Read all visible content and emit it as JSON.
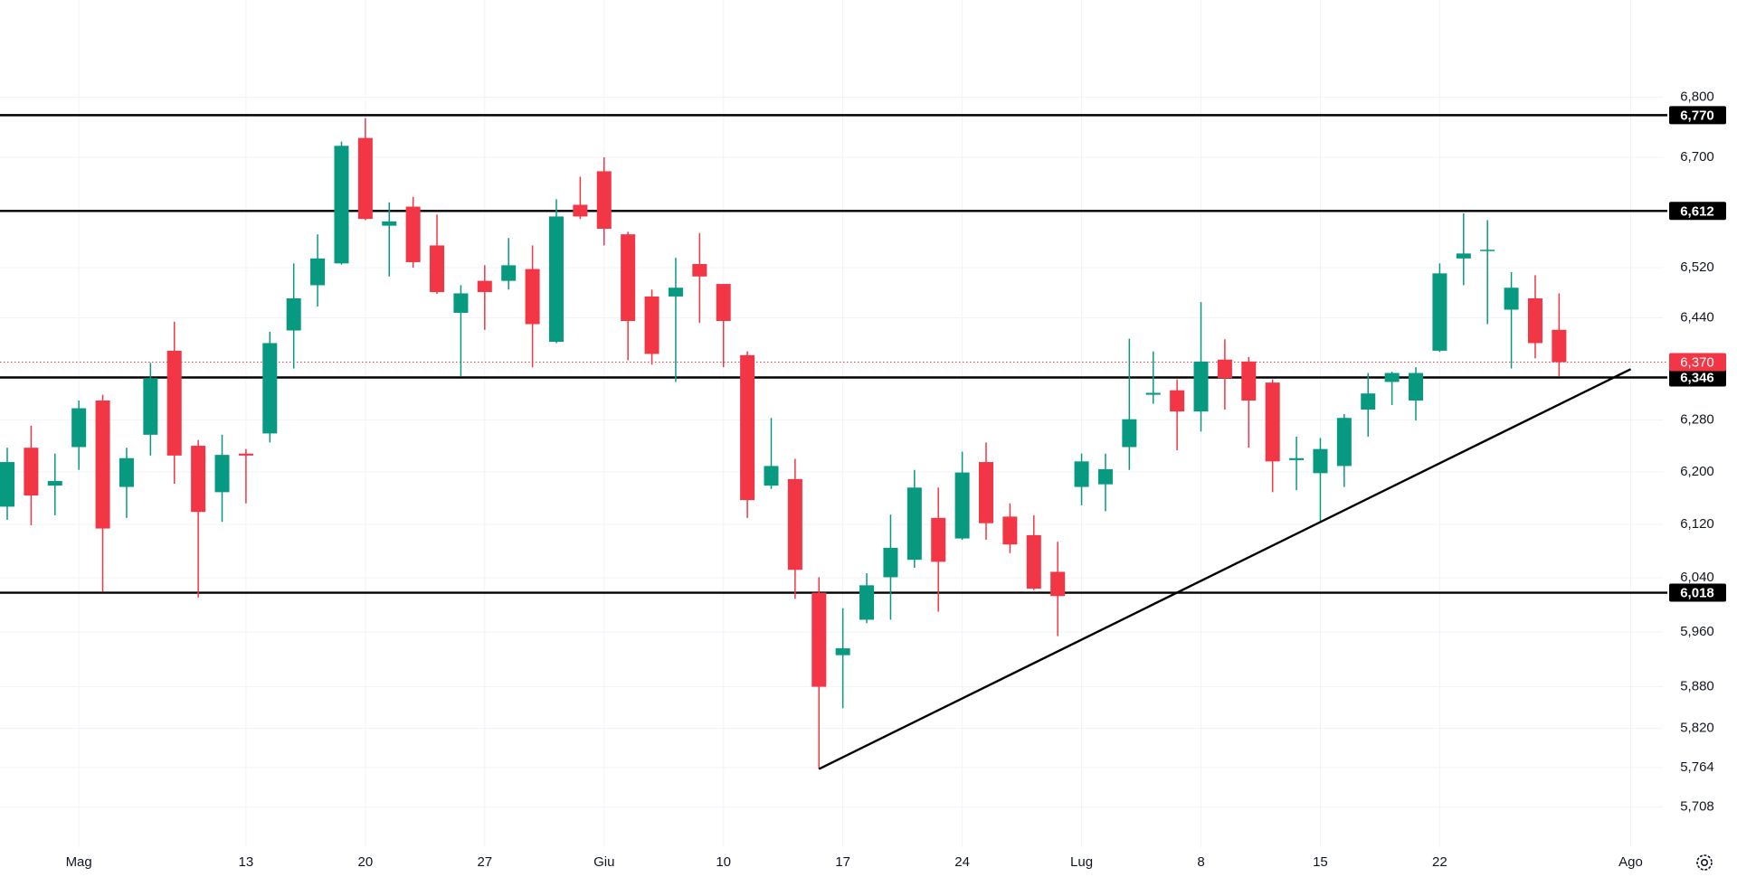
{
  "chart_data": {
    "type": "candlestick",
    "log_scale": true,
    "grid": true,
    "up_color": "#089981",
    "down_color": "#f23645",
    "categories": [
      null,
      null,
      null,
      "Mag",
      null,
      null,
      null,
      null,
      null,
      null,
      "13",
      null,
      null,
      null,
      null,
      "20",
      null,
      null,
      null,
      null,
      "27",
      null,
      null,
      null,
      null,
      "Giu",
      null,
      null,
      null,
      null,
      "10",
      null,
      null,
      null,
      null,
      "17",
      null,
      null,
      null,
      null,
      "24",
      null,
      null,
      null,
      null,
      "Lug",
      null,
      null,
      null,
      null,
      "8",
      null,
      null,
      null,
      null,
      "15",
      null,
      null,
      null,
      null,
      "22",
      null,
      null,
      null,
      null,
      null,
      null,
      null,
      "Ago"
    ],
    "open": [
      6147,
      6237,
      6179,
      6238,
      6310,
      6177,
      6257,
      6388,
      6240,
      6169,
      6228,
      6259,
      6420,
      6492,
      6527,
      6732,
      6588,
      6619,
      6556,
      6448,
      6499,
      6499,
      6518,
      6402,
      6622,
      6677,
      6574,
      6474,
      6474,
      6526,
      6494,
      6381,
      6179,
      6189,
      6018,
      5926,
      5978,
      6041,
      6067,
      6130,
      6099,
      6215,
      6132,
      6104,
      6049,
      6177,
      6181,
      6238,
      6319,
      6326,
      6293,
      6374,
      6371,
      6338,
      6218,
      6198,
      6209,
      6296,
      6339,
      6310,
      6388,
      6535,
      6547,
      6453,
      6471,
      6421,
      null,
      null,
      null
    ],
    "high": [
      6237,
      6271,
      6228,
      6310,
      6319,
      6237,
      6369,
      6434,
      6249,
      6257,
      6235,
      6418,
      6527,
      6574,
      6726,
      6765,
      6626,
      6635,
      6606,
      6492,
      6524,
      6568,
      6556,
      6631,
      6668,
      6700,
      6578,
      6485,
      6536,
      6576,
      6494,
      6387,
      6283,
      6220,
      6041,
      5995,
      6047,
      6135,
      6203,
      6176,
      6231,
      6245,
      6152,
      6134,
      6094,
      6228,
      6228,
      6407,
      6387,
      6343,
      6465,
      6406,
      6378,
      6343,
      6254,
      6252,
      6289,
      6353,
      6355,
      6362,
      6527,
      6608,
      6597,
      6513,
      6508,
      6479,
      null,
      null,
      null
    ],
    "low": [
      6127,
      6119,
      6134,
      6203,
      6019,
      6130,
      6225,
      6182,
      6011,
      6124,
      6152,
      6245,
      6360,
      6458,
      6525,
      6597,
      6506,
      6520,
      6478,
      6348,
      6421,
      6485,
      6362,
      6400,
      6599,
      6556,
      6373,
      6366,
      6339,
      6432,
      6362,
      6130,
      6174,
      6009,
      5762,
      5849,
      5973,
      5978,
      6055,
      5990,
      6097,
      6097,
      6077,
      6022,
      5954,
      6149,
      6140,
      6203,
      6305,
      6233,
      6262,
      6296,
      6237,
      6169,
      6172,
      6125,
      6177,
      6254,
      6303,
      6279,
      6386,
      6492,
      6430,
      6360,
      6376,
      6348,
      null,
      null,
      null
    ],
    "close": [
      6215,
      6164,
      6186,
      6298,
      6114,
      6221,
      6345,
      6225,
      6139,
      6226,
      6225,
      6400,
      6471,
      6535,
      6719,
      6599,
      6595,
      6529,
      6481,
      6479,
      6481,
      6524,
      6430,
      6603,
      6603,
      6583,
      6435,
      6383,
      6488,
      6506,
      6435,
      6157,
      6209,
      6052,
      5880,
      5936,
      6029,
      6085,
      6176,
      6064,
      6199,
      6122,
      6090,
      6024,
      6013,
      6216,
      6204,
      6281,
      6322,
      6293,
      6371,
      6345,
      6310,
      6216,
      6221,
      6235,
      6283,
      6321,
      6353,
      6353,
      6511,
      6543,
      6549,
      6488,
      6400,
      6370,
      null,
      null,
      null
    ],
    "ylim": [
      5652,
      6965
    ],
    "yticks": [
      {
        "value": 6800,
        "label": "6,800"
      },
      {
        "value": 6700,
        "label": "6,700"
      },
      {
        "value": 6520,
        "label": "6,520"
      },
      {
        "value": 6440,
        "label": "6,440"
      },
      {
        "value": 6280,
        "label": "6,280"
      },
      {
        "value": 6200,
        "label": "6,200"
      },
      {
        "value": 6120,
        "label": "6,120"
      },
      {
        "value": 6040,
        "label": "6,040"
      },
      {
        "value": 5960,
        "label": "5,960"
      },
      {
        "value": 5880,
        "label": "5,880"
      },
      {
        "value": 5820,
        "label": "5,820"
      },
      {
        "value": 5764,
        "label": "5,764"
      },
      {
        "value": 5708,
        "label": "5,708"
      }
    ],
    "levels": [
      {
        "value": 6770,
        "label": "6,770"
      },
      {
        "value": 6612,
        "label": "6,612"
      },
      {
        "value": 6346,
        "label": "6,346"
      },
      {
        "value": 6018,
        "label": "6,018"
      }
    ],
    "level_color": "#000000",
    "last_price": {
      "value": 6370,
      "label": "6,370",
      "color": "#f23645"
    },
    "trendline": {
      "x": [
        34,
        68
      ],
      "values": [
        5762,
        6359
      ]
    }
  }
}
